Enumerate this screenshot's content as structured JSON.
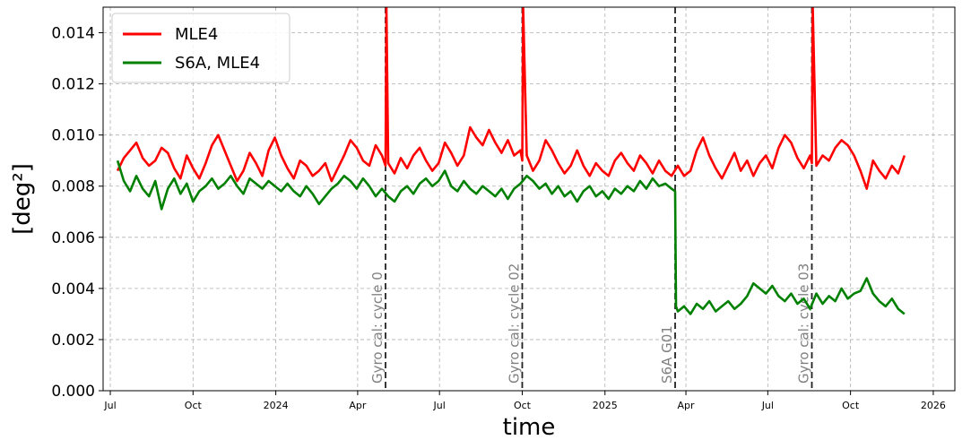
{
  "chart_data": {
    "type": "line",
    "xlabel": "time",
    "ylabel": "[deg²]",
    "xlim": [
      "2023-06-23",
      "2026-01-25"
    ],
    "ylim": [
      0,
      0.015
    ],
    "grid": true,
    "legend_position": "top-left",
    "x_ticks": [
      {
        "date": "2023-07-01",
        "label": "Jul"
      },
      {
        "date": "2023-10-01",
        "label": "Oct"
      },
      {
        "date": "2024-01-01",
        "label": "2024"
      },
      {
        "date": "2024-04-01",
        "label": "Apr"
      },
      {
        "date": "2024-07-01",
        "label": "Jul"
      },
      {
        "date": "2024-10-01",
        "label": "Oct"
      },
      {
        "date": "2025-01-01",
        "label": "2025"
      },
      {
        "date": "2025-04-01",
        "label": "Apr"
      },
      {
        "date": "2025-07-01",
        "label": "Jul"
      },
      {
        "date": "2025-10-01",
        "label": "Oct"
      },
      {
        "date": "2026-01-01",
        "label": "2026"
      }
    ],
    "y_ticks": [
      {
        "value": 0,
        "label": "0.000"
      },
      {
        "value": 0.002,
        "label": "0.002"
      },
      {
        "value": 0.004,
        "label": "0.004"
      },
      {
        "value": 0.006,
        "label": "0.006"
      },
      {
        "value": 0.008,
        "label": "0.008"
      },
      {
        "value": 0.01,
        "label": "0.010"
      },
      {
        "value": 0.012,
        "label": "0.012"
      },
      {
        "value": 0.014,
        "label": "0.014"
      }
    ],
    "events": [
      {
        "date": "2024-05-02",
        "label": "Gyro cal: cycle 0"
      },
      {
        "date": "2024-10-01",
        "label": "Gyro cal: cycle 02"
      },
      {
        "date": "2025-03-20",
        "label": "S6A G01"
      },
      {
        "date": "2025-08-19",
        "label": "Gyro cal: cycle 03"
      }
    ],
    "series": [
      {
        "name": "MLE4",
        "color": "#ff0000",
        "x": [
          "2023-07-09",
          "2023-07-16",
          "2023-07-23",
          "2023-07-30",
          "2023-08-06",
          "2023-08-13",
          "2023-08-20",
          "2023-08-27",
          "2023-09-03",
          "2023-09-10",
          "2023-09-17",
          "2023-09-24",
          "2023-10-01",
          "2023-10-08",
          "2023-10-15",
          "2023-10-22",
          "2023-10-29",
          "2023-11-05",
          "2023-11-12",
          "2023-11-19",
          "2023-11-26",
          "2023-12-03",
          "2023-12-10",
          "2023-12-17",
          "2023-12-24",
          "2023-12-31",
          "2024-01-07",
          "2024-01-14",
          "2024-01-21",
          "2024-01-28",
          "2024-02-04",
          "2024-02-11",
          "2024-02-18",
          "2024-02-25",
          "2024-03-03",
          "2024-03-10",
          "2024-03-17",
          "2024-03-24",
          "2024-03-31",
          "2024-04-07",
          "2024-04-14",
          "2024-04-21",
          "2024-04-28",
          "2024-05-02",
          "2024-05-03",
          "2024-05-05",
          "2024-05-12",
          "2024-05-19",
          "2024-05-26",
          "2024-06-02",
          "2024-06-09",
          "2024-06-16",
          "2024-06-23",
          "2024-06-30",
          "2024-07-07",
          "2024-07-14",
          "2024-07-21",
          "2024-07-28",
          "2024-08-04",
          "2024-08-11",
          "2024-08-18",
          "2024-08-25",
          "2024-09-01",
          "2024-09-08",
          "2024-09-15",
          "2024-09-22",
          "2024-09-29",
          "2024-10-01",
          "2024-10-02",
          "2024-10-06",
          "2024-10-13",
          "2024-10-20",
          "2024-10-27",
          "2024-11-03",
          "2024-11-10",
          "2024-11-17",
          "2024-11-24",
          "2024-12-01",
          "2024-12-08",
          "2024-12-15",
          "2024-12-22",
          "2024-12-29",
          "2025-01-05",
          "2025-01-12",
          "2025-01-19",
          "2025-01-26",
          "2025-02-02",
          "2025-02-09",
          "2025-02-16",
          "2025-02-23",
          "2025-03-02",
          "2025-03-09",
          "2025-03-16",
          "2025-03-23",
          "2025-03-30",
          "2025-04-06",
          "2025-04-13",
          "2025-04-20",
          "2025-04-27",
          "2025-05-04",
          "2025-05-11",
          "2025-05-18",
          "2025-05-25",
          "2025-06-01",
          "2025-06-08",
          "2025-06-15",
          "2025-06-22",
          "2025-06-29",
          "2025-07-06",
          "2025-07-13",
          "2025-07-20",
          "2025-07-27",
          "2025-08-03",
          "2025-08-10",
          "2025-08-17",
          "2025-08-19",
          "2025-08-20",
          "2025-08-24",
          "2025-08-31",
          "2025-09-07",
          "2025-09-14",
          "2025-09-21",
          "2025-09-28",
          "2025-10-05",
          "2025-10-12",
          "2025-10-19",
          "2025-10-26",
          "2025-11-02",
          "2025-11-09",
          "2025-11-16",
          "2025-11-23",
          "2025-11-30"
        ],
        "y": [
          0.0086,
          0.0091,
          0.0094,
          0.0097,
          0.0091,
          0.0088,
          0.009,
          0.0095,
          0.0093,
          0.0087,
          0.0083,
          0.0092,
          0.0087,
          0.0083,
          0.0089,
          0.0096,
          0.01,
          0.0094,
          0.0088,
          0.0082,
          0.0086,
          0.0093,
          0.0089,
          0.0084,
          0.0094,
          0.0099,
          0.0092,
          0.0087,
          0.0083,
          0.009,
          0.0088,
          0.0084,
          0.0086,
          0.0089,
          0.0082,
          0.0087,
          0.0092,
          0.0098,
          0.0095,
          0.009,
          0.0088,
          0.0096,
          0.0092,
          0.0088,
          0.015,
          0.0089,
          0.0085,
          0.0091,
          0.0087,
          0.0092,
          0.0095,
          0.009,
          0.0086,
          0.0089,
          0.0097,
          0.0093,
          0.0088,
          0.0092,
          0.0103,
          0.0099,
          0.0096,
          0.0102,
          0.0097,
          0.0093,
          0.0098,
          0.0092,
          0.0094,
          0.009,
          0.015,
          0.0092,
          0.0086,
          0.009,
          0.0098,
          0.0094,
          0.0089,
          0.0085,
          0.0088,
          0.0094,
          0.0088,
          0.0084,
          0.0089,
          0.0086,
          0.0084,
          0.009,
          0.0093,
          0.0089,
          0.0086,
          0.0092,
          0.0089,
          0.0085,
          0.009,
          0.0086,
          0.0084,
          0.0088,
          0.0084,
          0.0086,
          0.0094,
          0.0099,
          0.0092,
          0.0087,
          0.0083,
          0.0088,
          0.0093,
          0.0086,
          0.009,
          0.0084,
          0.0089,
          0.0092,
          0.0087,
          0.0095,
          0.01,
          0.0097,
          0.0091,
          0.0087,
          0.0092,
          0.0089,
          0.015,
          0.0088,
          0.0092,
          0.009,
          0.0095,
          0.0098,
          0.0096,
          0.0092,
          0.0086,
          0.0079,
          0.009,
          0.0086,
          0.0083,
          0.0088,
          0.0085,
          0.0092
        ]
      },
      {
        "name": "S6A, MLE4",
        "color": "#008000",
        "x": [
          "2023-07-09",
          "2023-07-16",
          "2023-07-23",
          "2023-07-30",
          "2023-08-06",
          "2023-08-13",
          "2023-08-20",
          "2023-08-27",
          "2023-09-03",
          "2023-09-10",
          "2023-09-17",
          "2023-09-24",
          "2023-10-01",
          "2023-10-08",
          "2023-10-15",
          "2023-10-22",
          "2023-10-29",
          "2023-11-05",
          "2023-11-12",
          "2023-11-19",
          "2023-11-26",
          "2023-12-03",
          "2023-12-10",
          "2023-12-17",
          "2023-12-24",
          "2023-12-31",
          "2024-01-07",
          "2024-01-14",
          "2024-01-21",
          "2024-01-28",
          "2024-02-04",
          "2024-02-11",
          "2024-02-18",
          "2024-02-25",
          "2024-03-03",
          "2024-03-10",
          "2024-03-17",
          "2024-03-24",
          "2024-03-31",
          "2024-04-07",
          "2024-04-14",
          "2024-04-21",
          "2024-04-28",
          "2024-05-05",
          "2024-05-12",
          "2024-05-19",
          "2024-05-26",
          "2024-06-02",
          "2024-06-09",
          "2024-06-16",
          "2024-06-23",
          "2024-06-30",
          "2024-07-07",
          "2024-07-14",
          "2024-07-21",
          "2024-07-28",
          "2024-08-04",
          "2024-08-11",
          "2024-08-18",
          "2024-08-25",
          "2024-09-01",
          "2024-09-08",
          "2024-09-15",
          "2024-09-22",
          "2024-09-29",
          "2024-10-06",
          "2024-10-13",
          "2024-10-20",
          "2024-10-27",
          "2024-11-03",
          "2024-11-10",
          "2024-11-17",
          "2024-11-24",
          "2024-12-01",
          "2024-12-08",
          "2024-12-15",
          "2024-12-22",
          "2024-12-29",
          "2025-01-05",
          "2025-01-12",
          "2025-01-19",
          "2025-01-26",
          "2025-02-02",
          "2025-02-09",
          "2025-02-16",
          "2025-02-23",
          "2025-03-02",
          "2025-03-09",
          "2025-03-16",
          "2025-03-20",
          "2025-03-21",
          "2025-03-23",
          "2025-03-30",
          "2025-04-06",
          "2025-04-13",
          "2025-04-20",
          "2025-04-27",
          "2025-05-04",
          "2025-05-11",
          "2025-05-18",
          "2025-05-25",
          "2025-06-01",
          "2025-06-08",
          "2025-06-15",
          "2025-06-22",
          "2025-06-29",
          "2025-07-06",
          "2025-07-13",
          "2025-07-20",
          "2025-07-27",
          "2025-08-03",
          "2025-08-10",
          "2025-08-17",
          "2025-08-24",
          "2025-08-31",
          "2025-09-07",
          "2025-09-14",
          "2025-09-21",
          "2025-09-28",
          "2025-10-05",
          "2025-10-12",
          "2025-10-19",
          "2025-10-26",
          "2025-11-02",
          "2025-11-09",
          "2025-11-16",
          "2025-11-23",
          "2025-11-30"
        ],
        "y": [
          0.009,
          0.0082,
          0.0078,
          0.0084,
          0.0079,
          0.0076,
          0.0082,
          0.0071,
          0.0079,
          0.0083,
          0.0077,
          0.0081,
          0.0074,
          0.0078,
          0.008,
          0.0083,
          0.0079,
          0.0081,
          0.0084,
          0.008,
          0.0077,
          0.0083,
          0.0081,
          0.0079,
          0.0082,
          0.008,
          0.0078,
          0.0081,
          0.0078,
          0.0076,
          0.008,
          0.0077,
          0.0073,
          0.0076,
          0.0079,
          0.0081,
          0.0084,
          0.0082,
          0.0079,
          0.0083,
          0.008,
          0.0076,
          0.0079,
          0.0076,
          0.0074,
          0.0078,
          0.008,
          0.0077,
          0.0081,
          0.0083,
          0.008,
          0.0082,
          0.0086,
          0.008,
          0.0078,
          0.0082,
          0.0079,
          0.0077,
          0.008,
          0.0078,
          0.0076,
          0.0079,
          0.0075,
          0.0079,
          0.0081,
          0.0084,
          0.0082,
          0.0079,
          0.0081,
          0.0077,
          0.008,
          0.0076,
          0.0078,
          0.0074,
          0.0078,
          0.008,
          0.0076,
          0.0078,
          0.0075,
          0.0079,
          0.0077,
          0.008,
          0.0078,
          0.0082,
          0.0079,
          0.0083,
          0.008,
          0.0081,
          0.0079,
          0.0078,
          0.0033,
          0.0031,
          0.0033,
          0.003,
          0.0034,
          0.0032,
          0.0035,
          0.0031,
          0.0033,
          0.0035,
          0.0032,
          0.0034,
          0.0037,
          0.0042,
          0.004,
          0.0038,
          0.0041,
          0.0037,
          0.0035,
          0.0038,
          0.0034,
          0.0036,
          0.0032,
          0.0038,
          0.0034,
          0.0037,
          0.0035,
          0.004,
          0.0036,
          0.0038,
          0.0039,
          0.0044,
          0.0038,
          0.0035,
          0.0033,
          0.0036,
          0.0032,
          0.003
        ]
      }
    ]
  }
}
